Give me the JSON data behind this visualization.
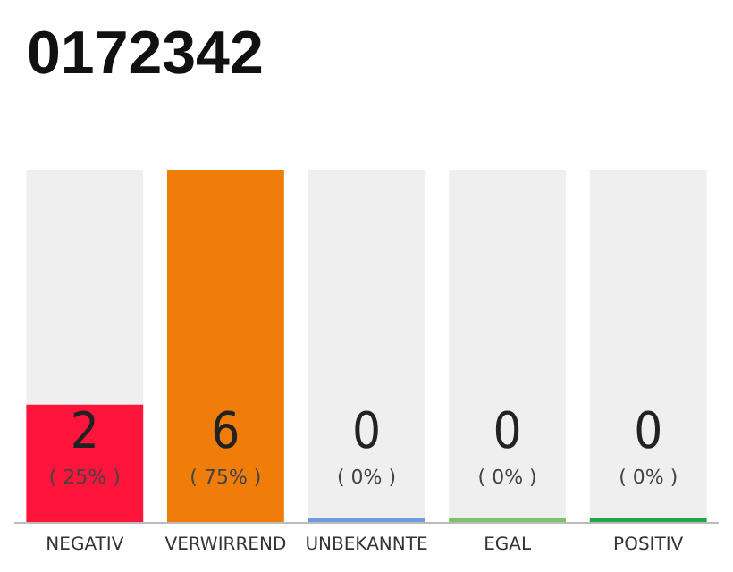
{
  "chart_data": {
    "type": "bar",
    "title": "0172342",
    "categories": [
      "NEGATIV",
      "VERWIRREND",
      "UNBEKANNTE",
      "EGAL",
      "POSITIV"
    ],
    "values": [
      2,
      6,
      0,
      0,
      0
    ],
    "colors": [
      "#ff143c",
      "#f07d0a",
      "#6c9be0",
      "#7ac36a",
      "#22a34a"
    ],
    "value_labels": [
      "2\n( 25% )",
      "6\n( 75% )",
      "0\n( 0% )",
      "0\n( 0% )",
      "0\n( 0% )"
    ]
  }
}
